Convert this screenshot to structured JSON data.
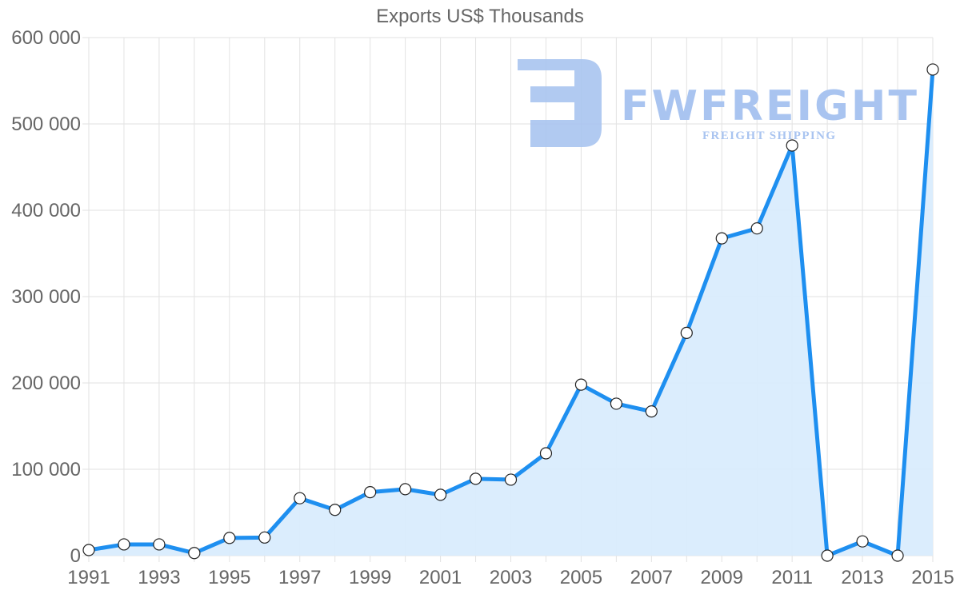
{
  "title": "Exports US$ Thousands",
  "watermark": {
    "brand": "FWFREIGHT",
    "tagline": "FREIGHT SHIPPING",
    "color": "#a9c4f0"
  },
  "colors": {
    "line": "#1e8ff0",
    "fill": "#d9ecfd",
    "grid": "#e2e2e2",
    "axis_text": "#666666",
    "point_fill": "#ffffff",
    "point_stroke": "#222222"
  },
  "chart_data": {
    "type": "area",
    "title": "Exports US$ Thousands",
    "xlabel": "",
    "ylabel": "",
    "x": [
      1991,
      1992,
      1993,
      1994,
      1995,
      1996,
      1997,
      1998,
      1999,
      2000,
      2001,
      2002,
      2003,
      2004,
      2005,
      2006,
      2007,
      2008,
      2009,
      2010,
      2011,
      2012,
      2013,
      2014,
      2015
    ],
    "series": [
      {
        "name": "Exports US$ Thousands",
        "values": [
          6500,
          13000,
          13000,
          3000,
          20500,
          21000,
          66500,
          53000,
          73500,
          77000,
          70500,
          89000,
          88000,
          118500,
          198000,
          176000,
          167000,
          258000,
          367500,
          379000,
          475000,
          0,
          16500,
          0,
          563000
        ]
      }
    ],
    "ylim": [
      0,
      600000
    ],
    "yticks": [
      0,
      100000,
      200000,
      300000,
      400000,
      500000,
      600000
    ],
    "ytick_labels": [
      "0",
      "100 000",
      "200 000",
      "300 000",
      "400 000",
      "500 000",
      "600 000"
    ],
    "xtick_labels": [
      "1991",
      "1993",
      "1995",
      "1997",
      "1999",
      "2001",
      "2003",
      "2005",
      "2007",
      "2009",
      "2011",
      "2013",
      "2015"
    ],
    "grid": true,
    "legend": "none"
  }
}
